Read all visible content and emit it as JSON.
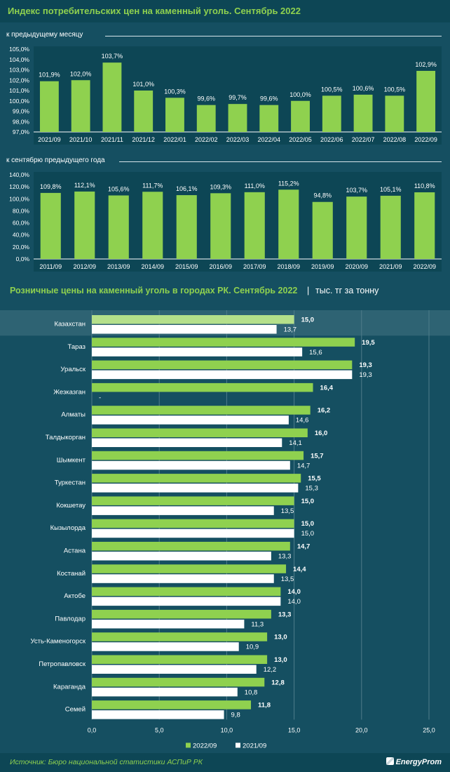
{
  "header": {
    "title": "Индекс потребительских цен на каменный уголь. Сентябрь 2022"
  },
  "section_mid": {
    "title": "Розничные цены на каменный уголь в городах РК. Сентябрь 2022",
    "separator": "|",
    "unit": "тыс. тг за тонну"
  },
  "footer": {
    "source": "Источник: Бюро национальной статистики АСПиР РК",
    "logo": "EnergyProm"
  },
  "colors": {
    "background": "#154f61",
    "band": "#0d4655",
    "green_bar": "#8fd14f",
    "white_bar": "#ffffff",
    "highlight_bar": "#b5e08a"
  },
  "chart_data": [
    {
      "type": "bar",
      "subtitle": "к предыдущему месяцу",
      "categories": [
        "2021/09",
        "2021/10",
        "2021/11",
        "2021/12",
        "2022/01",
        "2022/02",
        "2022/03",
        "2022/04",
        "2022/05",
        "2022/06",
        "2022/07",
        "2022/08",
        "2022/09"
      ],
      "values": [
        101.9,
        102.0,
        103.7,
        101.0,
        100.3,
        99.6,
        99.7,
        99.6,
        100.0,
        100.5,
        100.6,
        100.5,
        102.9
      ],
      "labels": [
        "101,9%",
        "102,0%",
        "103,7%",
        "101,0%",
        "100,3%",
        "99,6%",
        "99,7%",
        "99,6%",
        "100,0%",
        "100,5%",
        "100,6%",
        "100,5%",
        "102,9%"
      ],
      "ylim": [
        97,
        105
      ],
      "yticks": [
        "105,0%",
        "104,0%",
        "103,0%",
        "102,0%",
        "101,0%",
        "100,0%",
        "99,0%",
        "98,0%",
        "97,0%"
      ],
      "grid": false
    },
    {
      "type": "bar",
      "subtitle": "к сентябрю предыдущего года",
      "categories": [
        "2011/09",
        "2012/09",
        "2013/09",
        "2014/09",
        "2015/09",
        "2016/09",
        "2017/09",
        "2018/09",
        "2019/09",
        "2020/09",
        "2021/09",
        "2022/09"
      ],
      "values": [
        109.8,
        112.1,
        105.6,
        111.7,
        106.1,
        109.3,
        111.0,
        115.2,
        94.8,
        103.7,
        105.1,
        110.8
      ],
      "labels": [
        "109,8%",
        "112,1%",
        "105,6%",
        "111,7%",
        "106,1%",
        "109,3%",
        "111,0%",
        "115,2%",
        "94,8%",
        "103,7%",
        "105,1%",
        "110,8%"
      ],
      "ylim": [
        0,
        140
      ],
      "yticks": [
        "140,0%",
        "120,0%",
        "100,0%",
        "80,0%",
        "60,0%",
        "40,0%",
        "20,0%",
        "0,0%"
      ],
      "grid": false
    },
    {
      "type": "bar",
      "orientation": "horizontal",
      "categories": [
        "Казахстан",
        "Тараз",
        "Уральск",
        "Жезказган",
        "Алматы",
        "Талдыкорган",
        "Шымкент",
        "Туркестан",
        "Кокшетау",
        "Кызылорда",
        "Астана",
        "Костанай",
        "Актобе",
        "Павлодар",
        "Усть-Каменогорск",
        "Петропавловск",
        "Караганда",
        "Семей"
      ],
      "series": [
        {
          "name": "2022/09",
          "values": [
            15.0,
            19.5,
            19.3,
            16.4,
            16.2,
            16.0,
            15.7,
            15.5,
            15.0,
            15.0,
            14.7,
            14.4,
            14.0,
            13.3,
            13.0,
            13.0,
            12.8,
            11.8
          ],
          "labels": [
            "15,0",
            "19,5",
            "19,3",
            "16,4",
            "16,2",
            "16,0",
            "15,7",
            "15,5",
            "15,0",
            "15,0",
            "14,7",
            "14,4",
            "14,0",
            "13,3",
            "13,0",
            "13,0",
            "12,8",
            "11,8"
          ]
        },
        {
          "name": "2021/09",
          "values": [
            13.7,
            15.6,
            19.3,
            null,
            14.6,
            14.1,
            14.7,
            15.3,
            13.5,
            15.0,
            13.3,
            13.5,
            14.0,
            11.3,
            10.9,
            12.2,
            10.8,
            9.8
          ],
          "labels": [
            "13,7",
            "15,6",
            "19,3",
            "-",
            "14,6",
            "14,1",
            "14,7",
            "15,3",
            "13,5",
            "15,0",
            "13,3",
            "13,5",
            "14,0",
            "11,3",
            "10,9",
            "12,2",
            "10,8",
            "9,8"
          ]
        }
      ],
      "xlim": [
        0,
        25
      ],
      "xticks": [
        "0,0",
        "5,0",
        "10,0",
        "15,0",
        "20,0",
        "25,0"
      ],
      "grid": true,
      "legend": "bottom-center"
    }
  ]
}
